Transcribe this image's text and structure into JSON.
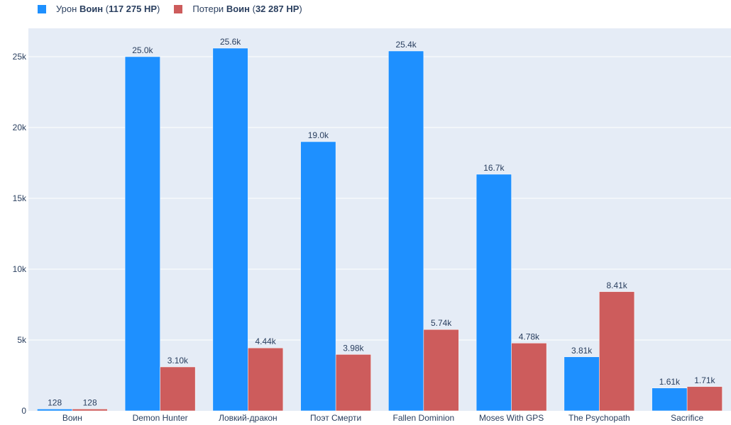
{
  "legend": [
    {
      "prefix": "Урон ",
      "bold_name": "Воин",
      "paren_open": " (",
      "bold_value": "117 275 HP",
      "paren_close": ")",
      "color": "#1e90ff"
    },
    {
      "prefix": "Потери ",
      "bold_name": "Воин",
      "paren_open": " (",
      "bold_value": "32 287 HP",
      "paren_close": ")",
      "color": "#cd5c5c"
    }
  ],
  "chart_data": {
    "type": "bar",
    "categories": [
      "Воин",
      "Demon Hunter",
      "Ловкий-дракон",
      "Поэт Смерти",
      "Fallen Dominion",
      "Moses With GPS",
      "The Psychopath",
      "Sacrifice"
    ],
    "series": [
      {
        "name": "Урон Воин (117 275 HP)",
        "color": "#1e90ff",
        "values": [
          128,
          25000,
          25600,
          19000,
          25400,
          16700,
          3810,
          1610
        ],
        "labels": [
          "128",
          "25.0k",
          "25.6k",
          "19.0k",
          "25.4k",
          "16.7k",
          "3.81k",
          "1.61k"
        ]
      },
      {
        "name": "Потери Воин (32 287 HP)",
        "color": "#cd5c5c",
        "values": [
          128,
          3100,
          4440,
          3980,
          5740,
          4780,
          8410,
          1710
        ],
        "labels": [
          "128",
          "3.10k",
          "4.44k",
          "3.98k",
          "5.74k",
          "4.78k",
          "8.41k",
          "1.71k"
        ]
      }
    ],
    "yticks": [
      0,
      5000,
      10000,
      15000,
      20000,
      25000
    ],
    "ytick_labels": [
      "0",
      "5k",
      "10k",
      "15k",
      "20k",
      "25k"
    ],
    "ylim": [
      0,
      27000
    ],
    "grid": true,
    "plot_bg": "#e5ecf6",
    "legend_position": "top-left"
  }
}
